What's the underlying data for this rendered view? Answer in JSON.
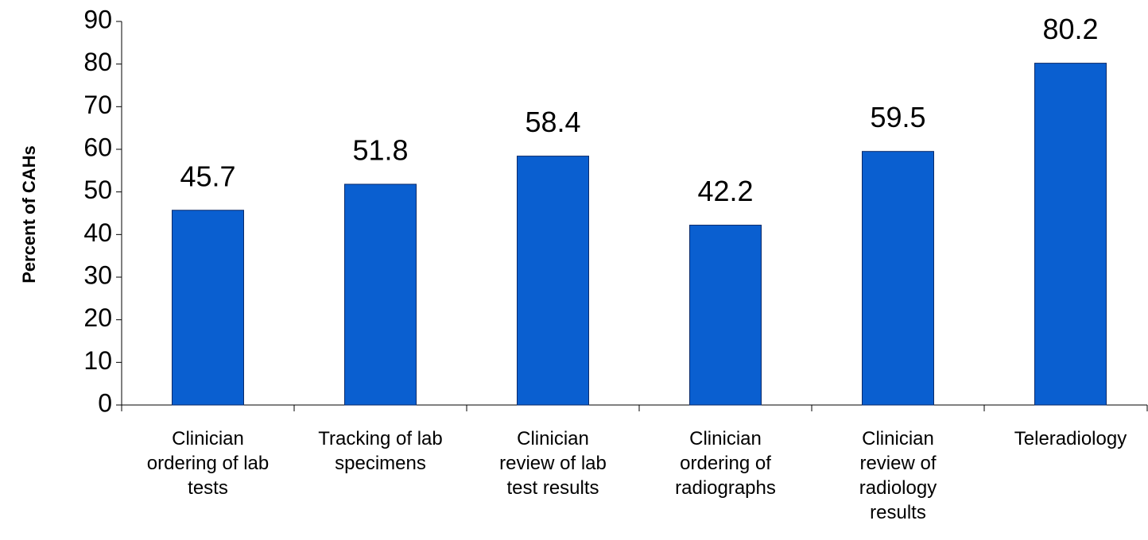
{
  "chart_data": {
    "type": "bar",
    "y_label": "Percent of CAHs",
    "categories": [
      "Clinician\nordering of lab\ntests",
      "Tracking of lab\nspecimens",
      "Clinician\nreview of lab\ntest results",
      "Clinician\nordering of\nradiographs",
      "Clinician\nreview of\nradiology\nresults",
      "Teleradiology"
    ],
    "values": [
      45.7,
      51.8,
      58.4,
      42.2,
      59.5,
      80.2
    ],
    "color": "#0a5fd0",
    "ylim": [
      0,
      90
    ],
    "yticks": [
      0,
      10,
      20,
      30,
      40,
      50,
      60,
      70,
      80,
      90
    ],
    "grid": false
  }
}
